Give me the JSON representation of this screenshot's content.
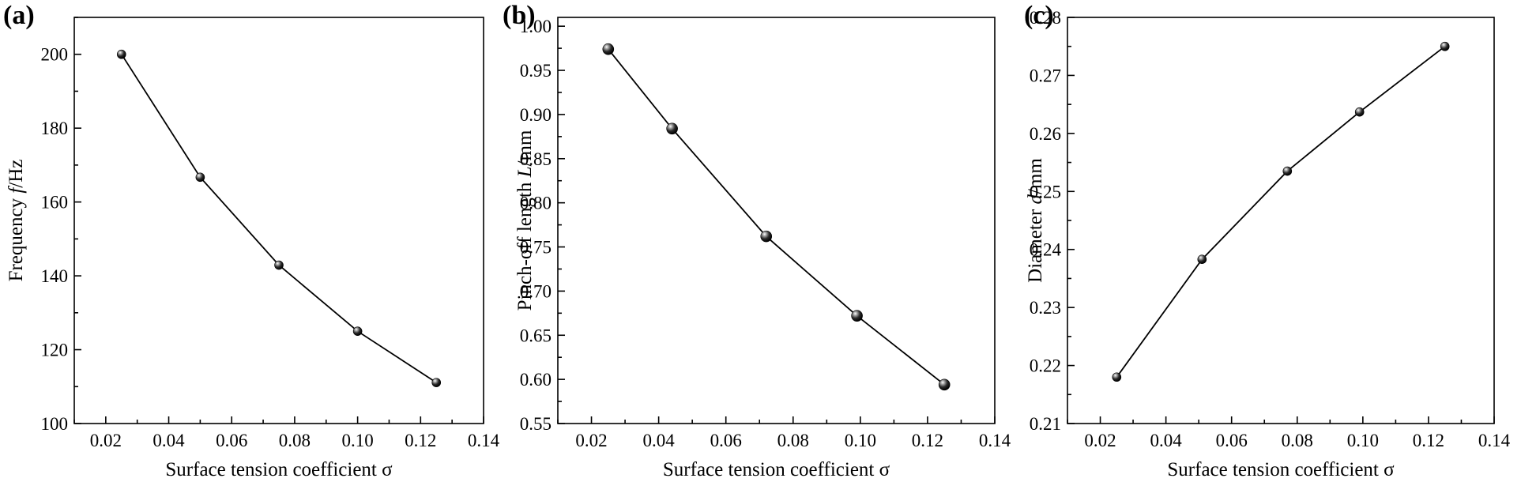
{
  "chart_data": [
    {
      "type": "line",
      "panel_label": "(a)",
      "xlabel": "Surface tension coefficient σ",
      "ylabel_parts": [
        "Frequency ",
        "f",
        "/Hz"
      ],
      "xlim": [
        0.01,
        0.14
      ],
      "ylim": [
        100,
        210
      ],
      "xticks": [
        0.02,
        0.04,
        0.06,
        0.08,
        0.1,
        0.12,
        0.14
      ],
      "xtick_labels": [
        "0.02",
        "0.04",
        "0.06",
        "0.08",
        "0.10",
        "0.12",
        "0.14"
      ],
      "yticks": [
        100,
        120,
        140,
        160,
        180,
        200
      ],
      "ytick_labels": [
        "100",
        "120",
        "140",
        "160",
        "180",
        "200"
      ],
      "series": [
        {
          "x": [
            0.025,
            0.05,
            0.075,
            0.1,
            0.125
          ],
          "y": [
            200,
            166.7,
            142.9,
            125,
            111.1
          ]
        }
      ],
      "marker_size": "small"
    },
    {
      "type": "line",
      "panel_label": "(b)",
      "xlabel": "Surface tension coefficient σ",
      "ylabel_parts": [
        "Pinch-off length ",
        "L",
        "/mm"
      ],
      "xlim": [
        0.01,
        0.14
      ],
      "ylim": [
        0.55,
        1.01
      ],
      "xticks": [
        0.02,
        0.04,
        0.06,
        0.08,
        0.1,
        0.12,
        0.14
      ],
      "xtick_labels": [
        "0.02",
        "0.04",
        "0.06",
        "0.08",
        "0.10",
        "0.12",
        "0.14"
      ],
      "yticks": [
        0.55,
        0.6,
        0.65,
        0.7,
        0.75,
        0.8,
        0.85,
        0.9,
        0.95,
        1.0
      ],
      "ytick_labels": [
        "0.55",
        "0.60",
        "0.65",
        "0.70",
        "0.75",
        "0.80",
        "0.85",
        "0.90",
        "0.95",
        "1.00"
      ],
      "series": [
        {
          "x": [
            0.025,
            0.044,
            0.072,
            0.099,
            0.125
          ],
          "y": [
            0.974,
            0.884,
            0.762,
            0.672,
            0.594
          ]
        }
      ],
      "marker_size": "large"
    },
    {
      "type": "line",
      "panel_label": "(c)",
      "xlabel": "Surface tension coefficient σ",
      "ylabel_parts": [
        "Diameter ",
        "d",
        "/mm"
      ],
      "xlim": [
        0.01,
        0.14
      ],
      "ylim": [
        0.21,
        0.28
      ],
      "xticks": [
        0.02,
        0.04,
        0.06,
        0.08,
        0.1,
        0.12,
        0.14
      ],
      "xtick_labels": [
        "0.02",
        "0.04",
        "0.06",
        "0.08",
        "0.10",
        "0.12",
        "0.14"
      ],
      "yticks": [
        0.21,
        0.22,
        0.23,
        0.24,
        0.25,
        0.26,
        0.27,
        0.28
      ],
      "ytick_labels": [
        "0.21",
        "0.22",
        "0.23",
        "0.24",
        "0.25",
        "0.26",
        "0.27",
        "0.28"
      ],
      "series": [
        {
          "x": [
            0.025,
            0.051,
            0.077,
            0.099,
            0.125
          ],
          "y": [
            0.218,
            0.2383,
            0.2535,
            0.2637,
            0.275
          ]
        }
      ],
      "marker_size": "small"
    }
  ]
}
